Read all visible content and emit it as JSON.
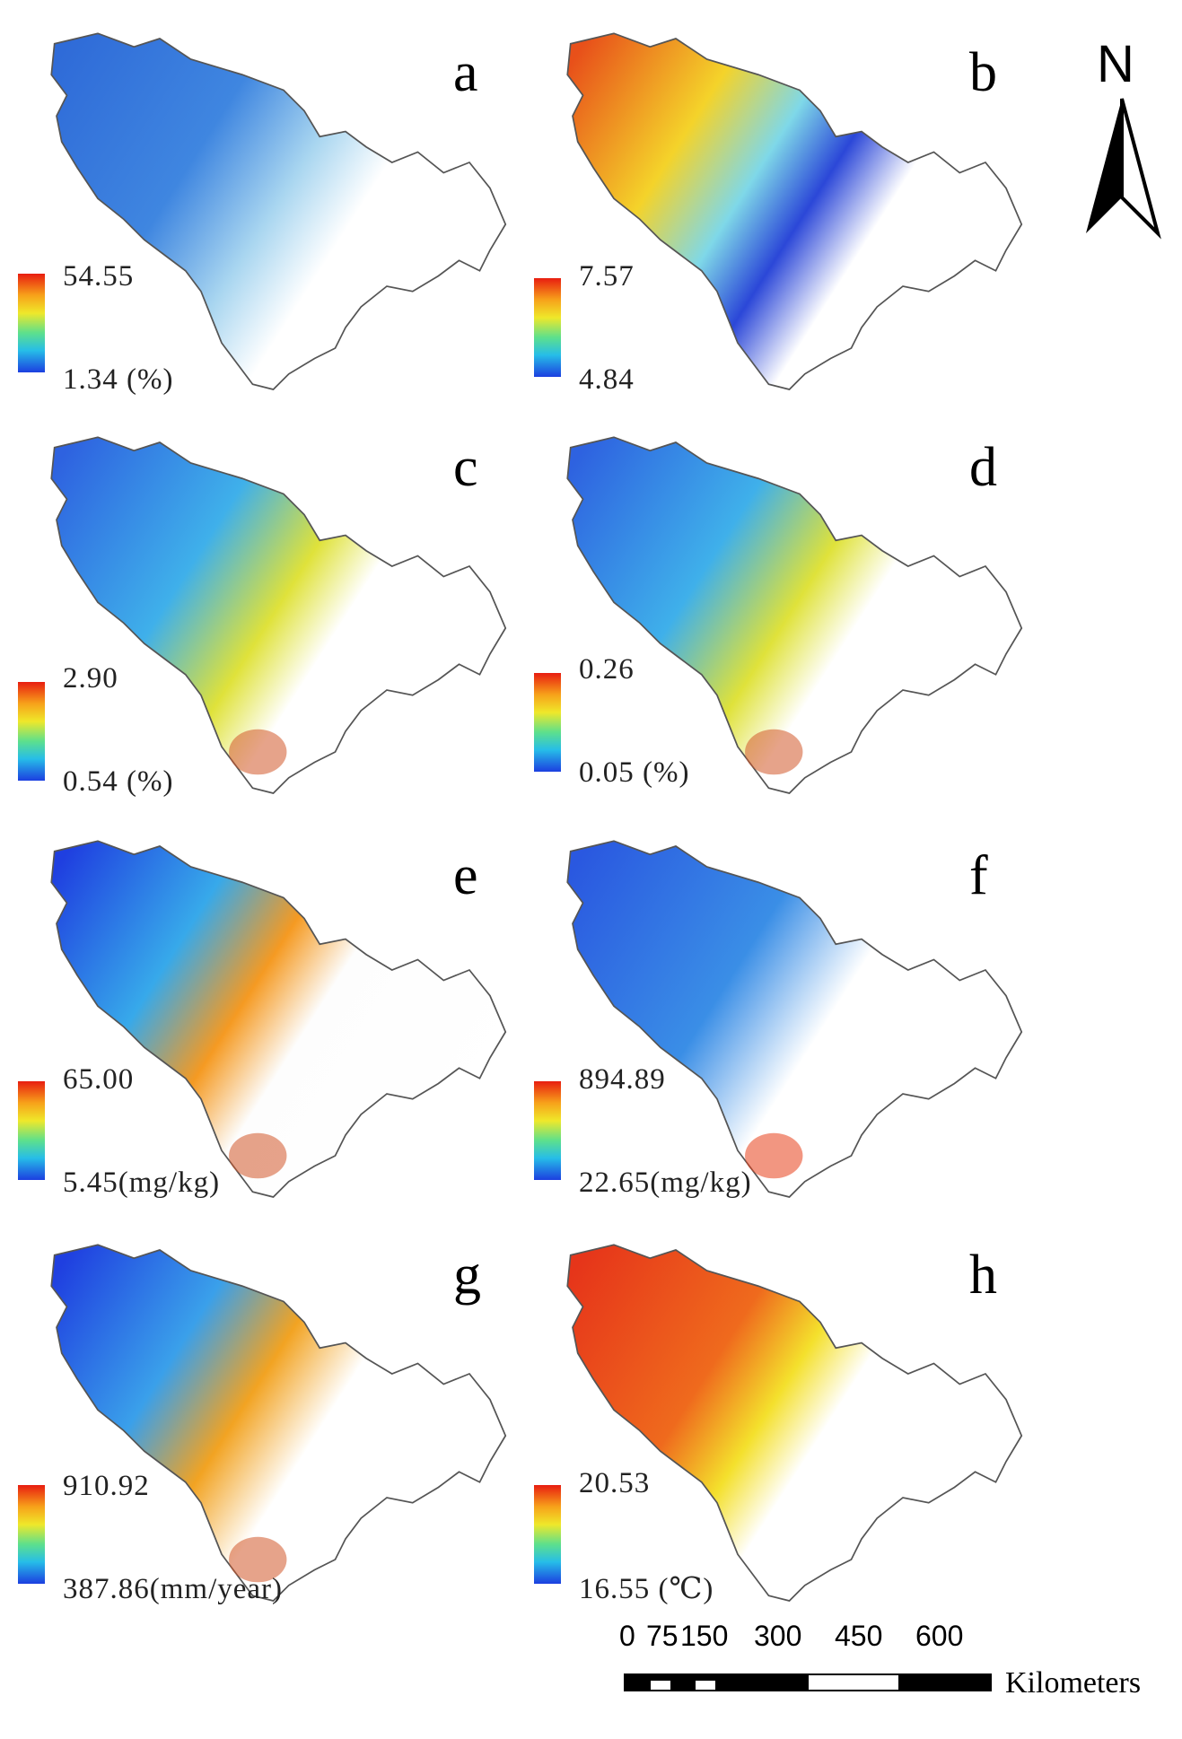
{
  "panels": [
    {
      "letter": "a",
      "max": "54.55",
      "min": "1.34 (%)",
      "scheme": "a"
    },
    {
      "letter": "b",
      "max": "7.57",
      "min": "4.84",
      "scheme": "b"
    },
    {
      "letter": "c",
      "max": "2.90",
      "min": "0.54 (%)",
      "scheme": "c"
    },
    {
      "letter": "d",
      "max": "0.26",
      "min": "0.05 (%)",
      "scheme": "c"
    },
    {
      "letter": "e",
      "max": "65.00",
      "min": "5.45(mg/kg)",
      "scheme": "e"
    },
    {
      "letter": "f",
      "max": "894.89",
      "min": "22.65(mg/kg)",
      "scheme": "f"
    },
    {
      "letter": "g",
      "max": "910.92",
      "min": "387.86(mm/year)",
      "scheme": "g"
    },
    {
      "letter": "h",
      "max": "20.53",
      "min": "16.55 (℃)",
      "scheme": "h"
    }
  ],
  "north_arrow": {
    "label": "N"
  },
  "scale_bar": {
    "ticks": [
      "0",
      "75",
      "150",
      "300",
      "450",
      "600"
    ],
    "unit": "Kilometers"
  },
  "colors": {
    "high": "#e81d10",
    "mid": "#efe82a",
    "low": "#1c3fe0"
  }
}
